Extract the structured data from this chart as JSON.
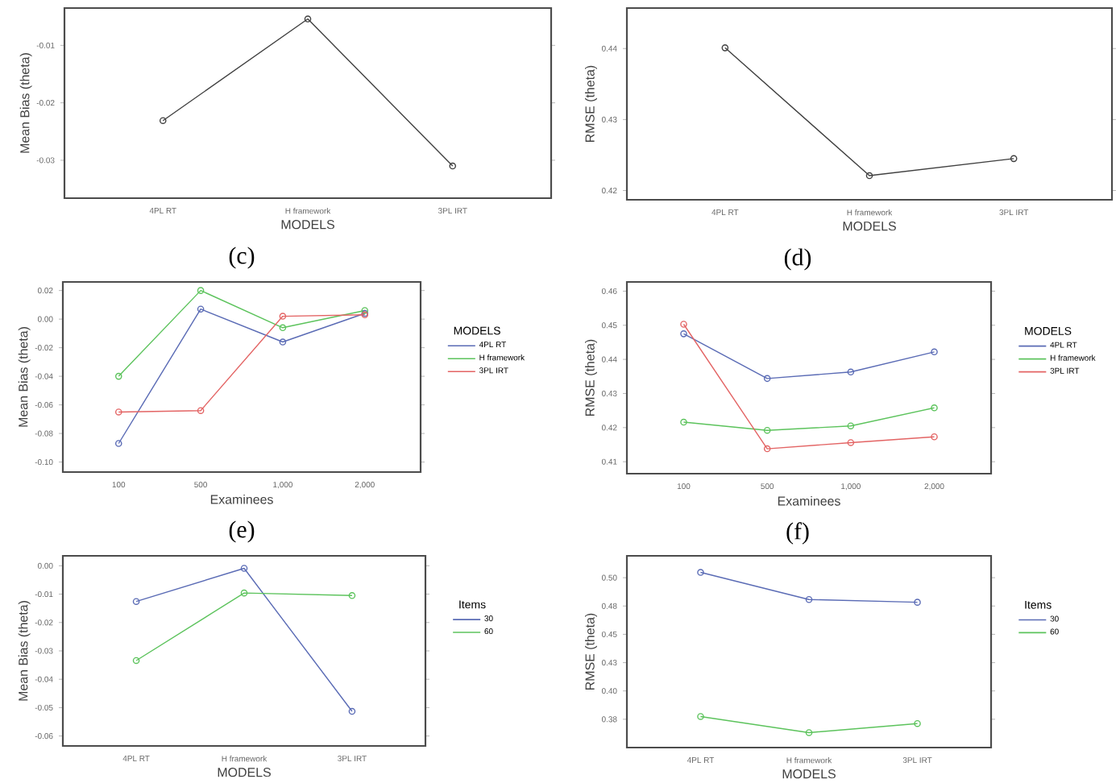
{
  "chart_data": [
    {
      "type": "line",
      "categories": [
        "4PL RT",
        "H framework",
        "3PL IRT"
      ],
      "xlabel": "MODELS",
      "ylabel": "Mean Bias (theta)",
      "marker": "circle",
      "annotations": [
        "(c)"
      ],
      "ylim": [
        -0.0366,
        -0.0035
      ],
      "yticks": [
        {
          "value": -0.01,
          "label": "-0.01"
        },
        {
          "value": -0.02,
          "label": "-0.02"
        },
        {
          "value": -0.03,
          "label": "-0.03"
        }
      ],
      "series": [
        {
          "color": "#404040",
          "values": [
            -0.0231,
            -0.0054,
            -0.031
          ]
        }
      ]
    },
    {
      "type": "line",
      "categories": [
        "4PL RT",
        "H framework",
        "3PL IRT"
      ],
      "xlabel": "MODELS",
      "ylabel": "RMSE (theta)",
      "marker": "circle",
      "annotations": [
        "(d)"
      ],
      "ylim": [
        0.4187,
        0.4457
      ],
      "yticks": [
        {
          "value": 0.42,
          "label": "0.42"
        },
        {
          "value": 0.43,
          "label": "0.43"
        },
        {
          "value": 0.44,
          "label": "0.44"
        }
      ],
      "series": [
        {
          "color": "#404040",
          "values": [
            0.4401,
            0.4221,
            0.4245
          ]
        }
      ]
    },
    {
      "type": "line",
      "categories": [
        "100",
        "500",
        "1,000",
        "2,000"
      ],
      "xlabel": "Examinees",
      "ylabel": "Mean Bias (theta)",
      "marker": "circle",
      "legend": "right",
      "legend_title": "MODELS",
      "annotations": [
        "(e)"
      ],
      "ylim": [
        -0.107,
        0.026
      ],
      "yticks": [
        {
          "value": 0.02,
          "label": "0.02"
        },
        {
          "value": 0.0,
          "label": "0.00"
        },
        {
          "value": -0.02,
          "label": "-0.02"
        },
        {
          "value": -0.04,
          "label": "-0.04"
        },
        {
          "value": -0.06,
          "label": "-0.06"
        },
        {
          "value": -0.08,
          "label": "-0.08"
        },
        {
          "value": -0.1,
          "label": "-0.10"
        }
      ],
      "series": [
        {
          "name": "4PL RT",
          "color": "#5a6bb5",
          "values": [
            -0.087,
            0.007,
            -0.016,
            0.004
          ]
        },
        {
          "name": "H framework",
          "color": "#5cc35c",
          "values": [
            -0.04,
            0.02,
            -0.006,
            0.006
          ]
        },
        {
          "name": "3PL IRT",
          "color": "#e36464",
          "values": [
            -0.065,
            -0.064,
            0.002,
            0.003
          ]
        }
      ]
    },
    {
      "type": "line",
      "categories": [
        "100",
        "500",
        "1,000",
        "2,000"
      ],
      "xlabel": "Examinees",
      "ylabel": "RMSE (theta)",
      "marker": "circle",
      "legend": "right",
      "legend_title": "MODELS",
      "annotations": [
        "(f)"
      ],
      "ylim": [
        0.4065,
        0.4627
      ],
      "yticks": [
        {
          "value": 0.41,
          "label": "0.41"
        },
        {
          "value": 0.42,
          "label": "0.42"
        },
        {
          "value": 0.43,
          "label": "0.43"
        },
        {
          "value": 0.44,
          "label": "0.44"
        },
        {
          "value": 0.45,
          "label": "0.45"
        },
        {
          "value": 0.46,
          "label": "0.46"
        }
      ],
      "series": [
        {
          "name": "4PL RT",
          "color": "#5a6bb5",
          "values": [
            0.4475,
            0.4344,
            0.4363,
            0.4422
          ]
        },
        {
          "name": "H framework",
          "color": "#5cc35c",
          "values": [
            0.4216,
            0.4192,
            0.4205,
            0.4258
          ]
        },
        {
          "name": "3PL IRT",
          "color": "#e36464",
          "values": [
            0.4503,
            0.4138,
            0.4156,
            0.4173
          ]
        }
      ]
    },
    {
      "type": "line",
      "categories": [
        "4PL RT",
        "H framework",
        "3PL IRT"
      ],
      "xlabel": "MODELS",
      "ylabel": "Mean Bias (theta)",
      "marker": "circle",
      "legend": "right",
      "legend_title": "Items",
      "ylim": [
        -0.0635,
        0.0035
      ],
      "yticks": [
        {
          "value": 0.0,
          "label": "0.00"
        },
        {
          "value": -0.01,
          "label": "-0.01"
        },
        {
          "value": -0.02,
          "label": "-0.02"
        },
        {
          "value": -0.03,
          "label": "-0.03"
        },
        {
          "value": -0.04,
          "label": "-0.04"
        },
        {
          "value": -0.05,
          "label": "-0.05"
        },
        {
          "value": -0.06,
          "label": "-0.06"
        }
      ],
      "series": [
        {
          "name": "30",
          "color": "#5a6bb5",
          "values": [
            -0.0126,
            -0.0009,
            -0.0513
          ]
        },
        {
          "name": "60",
          "color": "#5cc35c",
          "values": [
            -0.0334,
            -0.0096,
            -0.0105
          ]
        }
      ]
    },
    {
      "type": "line",
      "categories": [
        "4PL RT",
        "H framework",
        "3PL IRT"
      ],
      "xlabel": "MODELS",
      "ylabel": "RMSE (theta)",
      "marker": "circle",
      "legend": "right",
      "legend_title": "Items",
      "ylim": [
        0.35,
        0.5193
      ],
      "yticks": [
        {
          "value": 0.5,
          "label": "0.50"
        },
        {
          "value": 0.475,
          "label": "0.48"
        },
        {
          "value": 0.45,
          "label": "0.45"
        },
        {
          "value": 0.425,
          "label": "0.43"
        },
        {
          "value": 0.4,
          "label": "0.40"
        },
        {
          "value": 0.375,
          "label": "0.38"
        }
      ],
      "series": [
        {
          "name": "30",
          "color": "#5a6bb5",
          "values": [
            0.5047,
            0.4807,
            0.4783
          ]
        },
        {
          "name": "60",
          "color": "#5cc35c",
          "values": [
            0.3774,
            0.3632,
            0.3712
          ]
        }
      ]
    }
  ]
}
